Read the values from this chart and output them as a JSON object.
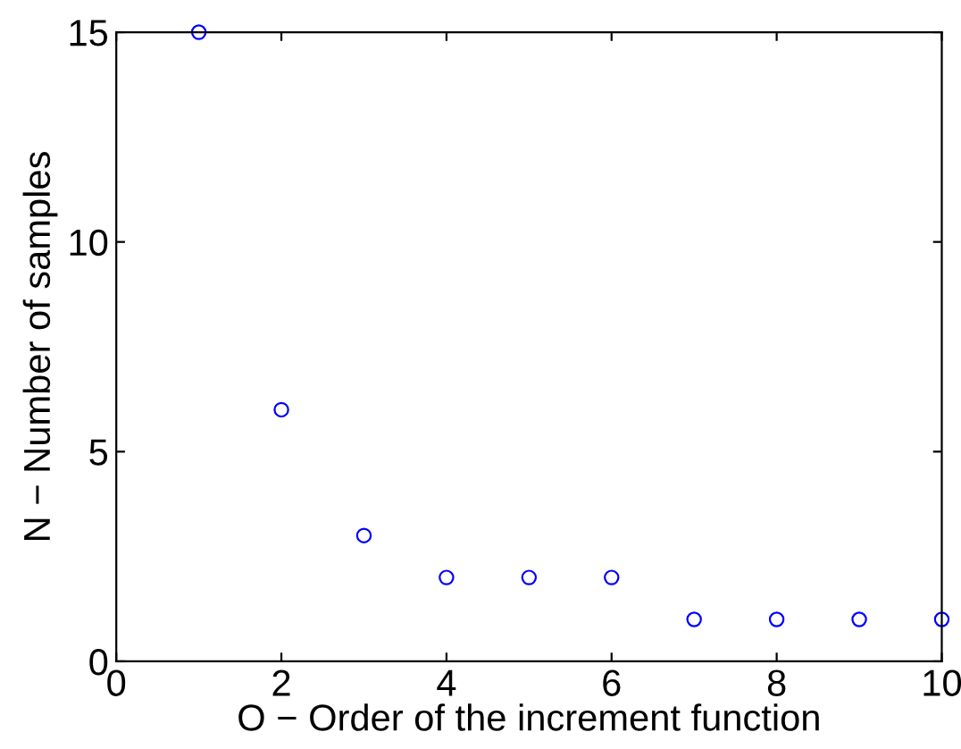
{
  "chart_data": {
    "type": "scatter",
    "xlabel": "O − Order of the increment function",
    "ylabel": "N − Number of samples",
    "x": [
      1,
      2,
      3,
      4,
      5,
      6,
      7,
      8,
      9,
      10
    ],
    "series": [
      {
        "color": "#0000ff",
        "values": [
          15,
          6,
          3,
          2,
          2,
          2,
          1,
          1,
          1,
          1
        ]
      }
    ],
    "marker": "circle",
    "xlim": [
      0,
      10
    ],
    "ylim": [
      0,
      15
    ],
    "xticks": [
      0,
      2,
      4,
      6,
      8,
      10
    ],
    "yticks": [
      0,
      5,
      10,
      15
    ],
    "grid": false,
    "legend": false
  }
}
